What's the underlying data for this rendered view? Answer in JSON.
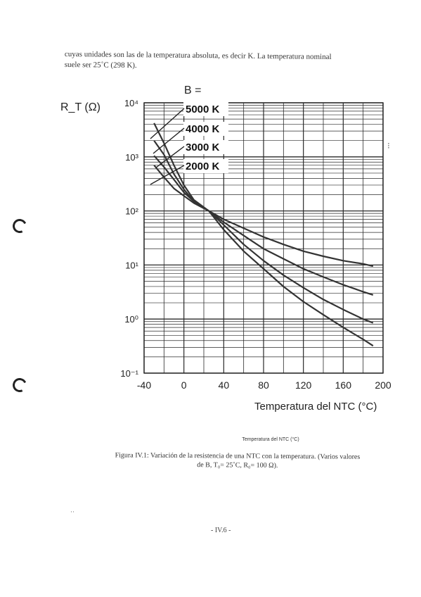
{
  "document": {
    "intro_line1": "cuyas unidades son las de la temperatura absoluta, es decir K. La temperatura nominal",
    "intro_line2": "suele ser 25˚C (298 K).",
    "figure_small_title": "Temperatura del NTC (°C)",
    "caption_line1": "Figura IV.1: Variación de la resistencia de una NTC con la temperatura. (Varios valores",
    "caption_line2": "de B, T₀= 25˚C, R₀= 100 Ω).",
    "page_number": "- IV.6 -"
  },
  "chart_data": {
    "type": "line",
    "title": "",
    "xlabel": "Temperatura del NTC (°C)",
    "ylabel": "R_T (Ω)",
    "x_ticks": [
      "-40",
      "0",
      "40",
      "80",
      "120",
      "160",
      "200"
    ],
    "y_ticks": [
      "10⁴",
      "10³",
      "10²",
      "10¹",
      "10⁰",
      "10⁻¹"
    ],
    "xlim": [
      -40,
      200
    ],
    "ylim": [
      0.1,
      10000
    ],
    "y_scale": "log",
    "grid": true,
    "legend_title": "B =",
    "legend_position": "top-center",
    "series": [
      {
        "name": "5000 K",
        "color": "#333333",
        "x": [
          -30,
          -20,
          -10,
          0,
          10,
          25,
          40,
          60,
          80,
          100,
          120,
          140,
          160,
          180,
          190
        ],
        "y": [
          4200,
          1800,
          700,
          300,
          160,
          100,
          45,
          18,
          8.5,
          4,
          2.1,
          1.2,
          0.7,
          0.42,
          0.32
        ]
      },
      {
        "name": "4000 K",
        "color": "#333333",
        "x": [
          -30,
          -20,
          -10,
          0,
          10,
          25,
          40,
          60,
          80,
          100,
          120,
          140,
          160,
          180,
          190
        ],
        "y": [
          2000,
          1100,
          480,
          250,
          150,
          100,
          55,
          24,
          12,
          6.5,
          3.8,
          2.3,
          1.5,
          1.0,
          0.85
        ]
      },
      {
        "name": "3000 K",
        "color": "#333333",
        "x": [
          -30,
          -20,
          -10,
          0,
          10,
          25,
          40,
          60,
          80,
          100,
          120,
          140,
          160,
          180,
          190
        ],
        "y": [
          1050,
          650,
          380,
          220,
          150,
          100,
          62,
          35,
          20,
          13,
          8.5,
          6,
          4.3,
          3.2,
          2.8
        ]
      },
      {
        "name": "2000 K",
        "color": "#333333",
        "x": [
          -30,
          -20,
          -10,
          0,
          10,
          25,
          40,
          60,
          80,
          100,
          120,
          140,
          160,
          180,
          190
        ],
        "y": [
          700,
          420,
          260,
          190,
          140,
          100,
          70,
          48,
          33,
          24,
          18,
          14.5,
          12,
          10.5,
          9.5
        ]
      }
    ]
  }
}
